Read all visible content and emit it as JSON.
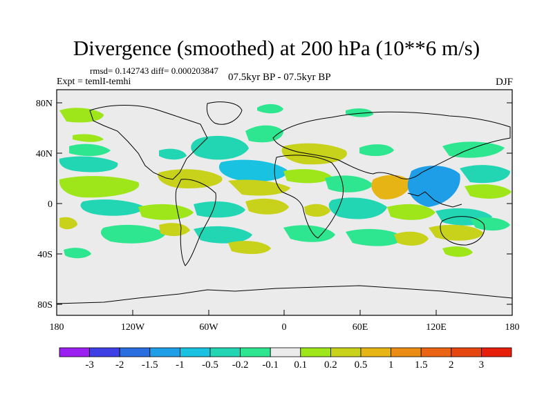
{
  "figure": {
    "title": "Divergence (smoothed) at 200 hPa (10**6 m/s)",
    "stats": "rmsd= 0.142743 diff= 0.000203847",
    "experiment": "Expt = temlI-temhi",
    "period": "07.5kyr BP - 07.5kyr BP",
    "season": "DJF"
  },
  "axes": {
    "y_ticks": [
      "80N",
      "40N",
      "0",
      "40S",
      "80S"
    ],
    "x_ticks": [
      "180",
      "120W",
      "60W",
      "0",
      "60E",
      "120E",
      "180"
    ]
  },
  "colorbar": {
    "labels": [
      "-3",
      "-2",
      "-1.5",
      "-1",
      "-0.5",
      "-0.2",
      "-0.1",
      "0.1",
      "0.2",
      "0.5",
      "1",
      "1.5",
      "2",
      "3"
    ],
    "colors": [
      "#9b1ff0",
      "#3f3fe6",
      "#2a6ee0",
      "#1e9ee6",
      "#19c2e0",
      "#22d6b4",
      "#2ee68f",
      "#ebebeb",
      "#9ee61a",
      "#c8d21a",
      "#e6b414",
      "#eb8c14",
      "#eb6414",
      "#e6460f",
      "#e61e0a"
    ]
  },
  "map_colors": {
    "background": "#ebebeb",
    "neg_small": "#2ee68f",
    "neg_mid": "#22d6b4",
    "neg_large": "#19c2e0",
    "neg_strong": "#1e9ee6",
    "pos_small": "#9ee61a",
    "pos_mid": "#c8d21a",
    "pos_large": "#e6b414"
  }
}
